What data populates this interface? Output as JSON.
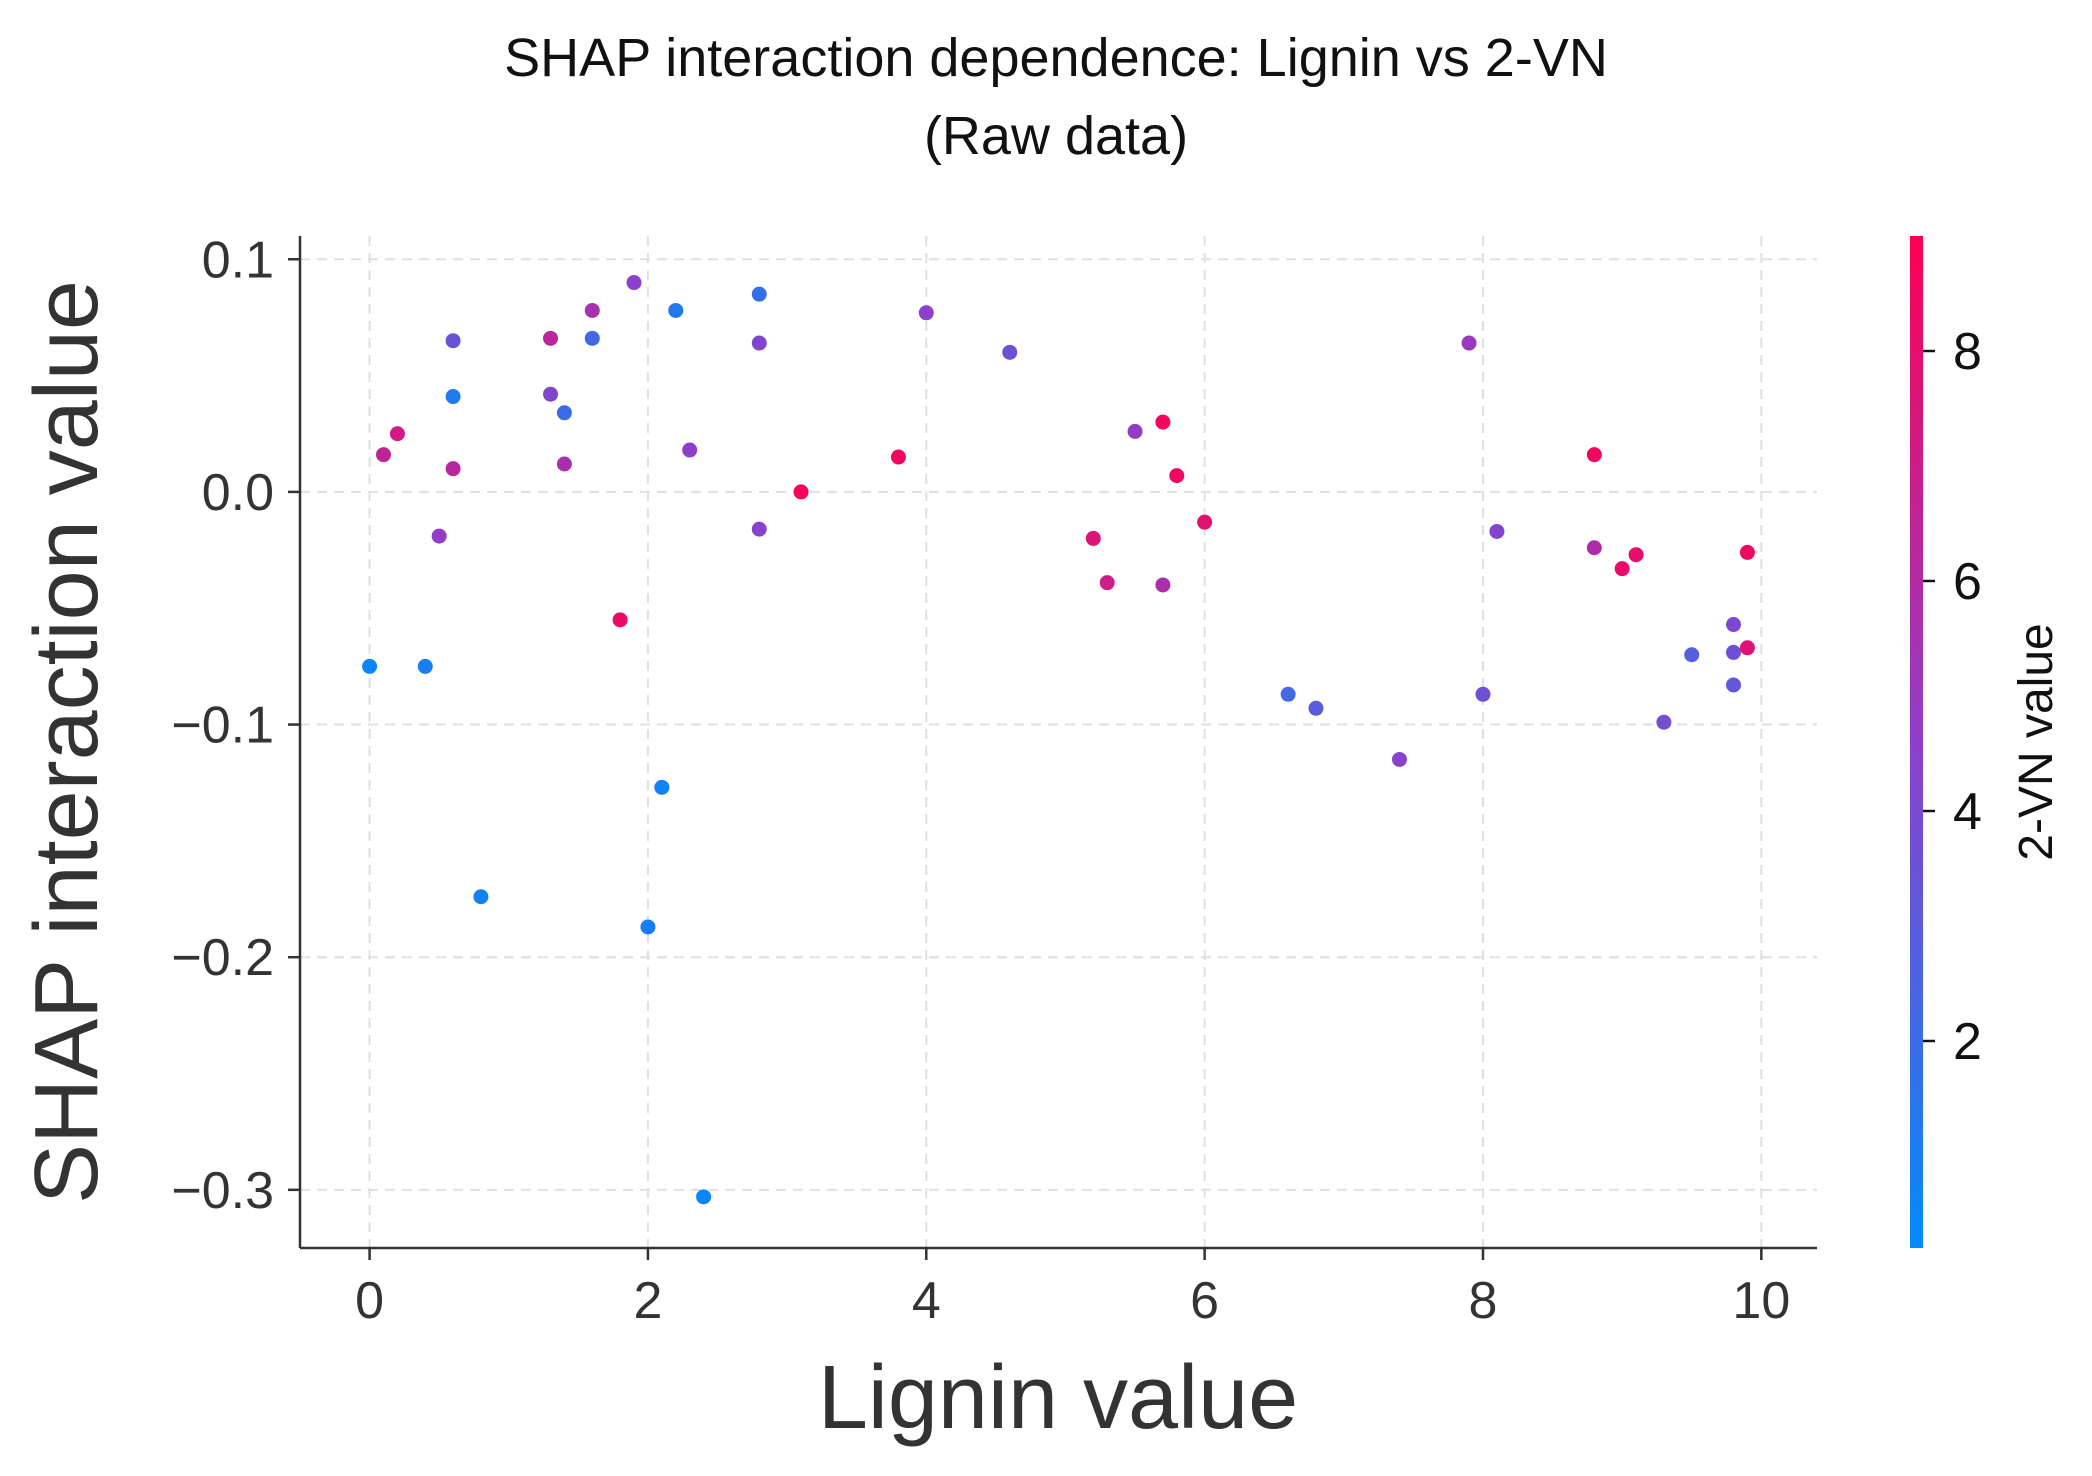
{
  "chart_data": {
    "type": "scatter",
    "title": [
      "SHAP interaction dependence: Lignin vs 2-VN",
      "(Raw data)"
    ],
    "xlabel": "Lignin value",
    "ylabel": "SHAP interaction value",
    "xlim": [
      -0.5,
      10.4
    ],
    "ylim": [
      -0.325,
      0.11
    ],
    "x_ticks": [
      0,
      2,
      4,
      6,
      8,
      10
    ],
    "x_tick_labels": [
      "0",
      "2",
      "4",
      "6",
      "8",
      "10"
    ],
    "y_ticks": [
      0.1,
      0.0,
      -0.1,
      -0.2,
      -0.3
    ],
    "y_tick_labels": [
      "0.1",
      "0.0",
      "−0.1",
      "−0.2",
      "−0.3"
    ],
    "grid": true,
    "colorbar": {
      "label": "2-VN value",
      "range": [
        0.2,
        9.0
      ],
      "ticks": [
        2,
        4,
        6,
        8
      ],
      "tick_labels": [
        "2",
        "4",
        "6",
        "8"
      ],
      "color_low": "#008bfb",
      "color_high": "#ff0052"
    },
    "points": [
      {
        "x": 0.0,
        "y": -0.075,
        "c": 0.6
      },
      {
        "x": 0.1,
        "y": 0.016,
        "c": 6.5
      },
      {
        "x": 0.2,
        "y": 0.025,
        "c": 7.2
      },
      {
        "x": 0.4,
        "y": -0.075,
        "c": 1.0
      },
      {
        "x": 0.5,
        "y": -0.019,
        "c": 4.8
      },
      {
        "x": 0.6,
        "y": 0.065,
        "c": 3.5
      },
      {
        "x": 0.6,
        "y": 0.041,
        "c": 1.2
      },
      {
        "x": 0.6,
        "y": 0.01,
        "c": 6.2
      },
      {
        "x": 0.8,
        "y": -0.174,
        "c": 0.8
      },
      {
        "x": 1.3,
        "y": 0.066,
        "c": 6.3
      },
      {
        "x": 1.3,
        "y": 0.042,
        "c": 4.2
      },
      {
        "x": 1.4,
        "y": 0.034,
        "c": 2.0
      },
      {
        "x": 1.4,
        "y": 0.012,
        "c": 5.7
      },
      {
        "x": 1.6,
        "y": 0.078,
        "c": 5.6
      },
      {
        "x": 1.6,
        "y": 0.066,
        "c": 2.2
      },
      {
        "x": 1.8,
        "y": -0.055,
        "c": 8.3
      },
      {
        "x": 1.9,
        "y": 0.09,
        "c": 4.5
      },
      {
        "x": 2.0,
        "y": -0.187,
        "c": 0.9
      },
      {
        "x": 2.1,
        "y": -0.127,
        "c": 0.7
      },
      {
        "x": 2.2,
        "y": 0.078,
        "c": 1.3
      },
      {
        "x": 2.3,
        "y": 0.018,
        "c": 4.6
      },
      {
        "x": 2.4,
        "y": -0.303,
        "c": 0.5
      },
      {
        "x": 2.8,
        "y": 0.085,
        "c": 1.8
      },
      {
        "x": 2.8,
        "y": 0.064,
        "c": 4.2
      },
      {
        "x": 2.8,
        "y": -0.016,
        "c": 4.4
      },
      {
        "x": 3.1,
        "y": 0.0,
        "c": 8.7
      },
      {
        "x": 3.8,
        "y": 0.015,
        "c": 8.5
      },
      {
        "x": 4.0,
        "y": 0.077,
        "c": 4.5
      },
      {
        "x": 4.6,
        "y": 0.06,
        "c": 3.6
      },
      {
        "x": 5.2,
        "y": -0.02,
        "c": 7.6
      },
      {
        "x": 5.3,
        "y": -0.039,
        "c": 7.0
      },
      {
        "x": 5.5,
        "y": 0.026,
        "c": 4.7
      },
      {
        "x": 5.7,
        "y": 0.03,
        "c": 8.6
      },
      {
        "x": 5.7,
        "y": -0.04,
        "c": 5.8
      },
      {
        "x": 5.8,
        "y": 0.007,
        "c": 8.4
      },
      {
        "x": 6.0,
        "y": -0.013,
        "c": 7.8
      },
      {
        "x": 6.6,
        "y": -0.087,
        "c": 2.2
      },
      {
        "x": 6.8,
        "y": -0.093,
        "c": 3.0
      },
      {
        "x": 7.4,
        "y": -0.115,
        "c": 4.4
      },
      {
        "x": 7.9,
        "y": 0.064,
        "c": 5.1
      },
      {
        "x": 8.0,
        "y": -0.087,
        "c": 3.7
      },
      {
        "x": 8.1,
        "y": -0.017,
        "c": 4.3
      },
      {
        "x": 8.8,
        "y": 0.016,
        "c": 8.6
      },
      {
        "x": 8.8,
        "y": -0.024,
        "c": 5.9
      },
      {
        "x": 9.0,
        "y": -0.033,
        "c": 8.2
      },
      {
        "x": 9.1,
        "y": -0.027,
        "c": 8.0
      },
      {
        "x": 9.3,
        "y": -0.099,
        "c": 3.8
      },
      {
        "x": 9.5,
        "y": -0.07,
        "c": 2.8
      },
      {
        "x": 9.8,
        "y": -0.057,
        "c": 4.0
      },
      {
        "x": 9.8,
        "y": -0.069,
        "c": 3.6
      },
      {
        "x": 9.8,
        "y": -0.083,
        "c": 3.2
      },
      {
        "x": 9.9,
        "y": -0.026,
        "c": 8.4
      },
      {
        "x": 9.9,
        "y": -0.067,
        "c": 7.7
      }
    ]
  }
}
